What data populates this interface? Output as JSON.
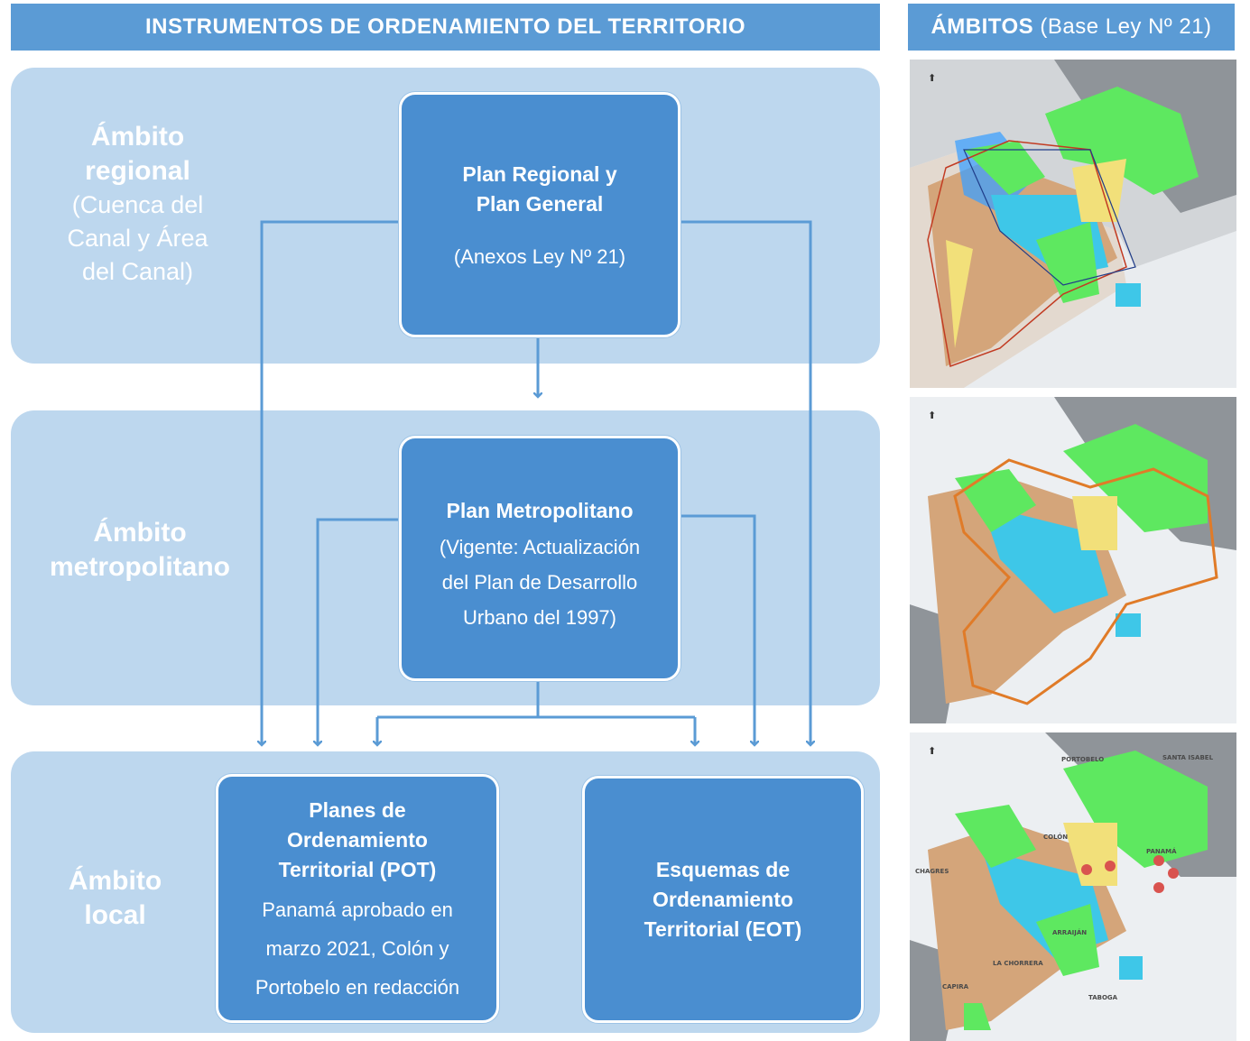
{
  "header": {
    "left_title": "INSTRUMENTOS DE ORDENAMIENTO DEL TERRITORIO",
    "right_title_bold": "ÁMBITOS",
    "right_title_rest": "(Base Ley Nº 21)"
  },
  "bands": {
    "regional": {
      "line1": "Ámbito",
      "line2": "regional",
      "line3": "(Cuenca del",
      "line4": "Canal y Área",
      "line5": "del Canal)"
    },
    "metro": {
      "line1": "Ámbito",
      "line2": "metropolitano"
    },
    "local": {
      "line1": "Ámbito",
      "line2": "local"
    }
  },
  "nodes": {
    "regional": {
      "title1": "Plan Regional y",
      "title2": "Plan General",
      "note": "(Anexos Ley Nº 21)"
    },
    "metro": {
      "title": "Plan Metropolitano",
      "note1": "(Vigente: Actualización",
      "note2": "del Plan de Desarrollo",
      "note3": "Urbano del 1997)"
    },
    "pot": {
      "title1": "Planes de",
      "title2": "Ordenamiento",
      "title3": "Territorial (POT)",
      "note1": "Panamá aprobado en",
      "note2": "marzo 2021, Colón y",
      "note3": "Portobelo en redacción"
    },
    "eot": {
      "title1": "Esquemas de",
      "title2": "Ordenamiento",
      "title3": "Territorial (EOT)"
    }
  },
  "maps": {
    "map3_places": {
      "portobelo": "PORTOBELO",
      "santa_isabel": "SANTA ISABEL",
      "colon": "COLÓN",
      "chagres": "CHAGRES",
      "panama": "PANAMÁ",
      "arraijan": "ARRAIJÁN",
      "la_chorrera": "LA CHORRERA",
      "taboga": "TABOGA",
      "capira": "CAPIRA"
    }
  },
  "colors": {
    "header": "#5b9bd5",
    "band": "#bdd7ee",
    "node": "#4a8ed0",
    "arrow": "#5b9bd5"
  }
}
